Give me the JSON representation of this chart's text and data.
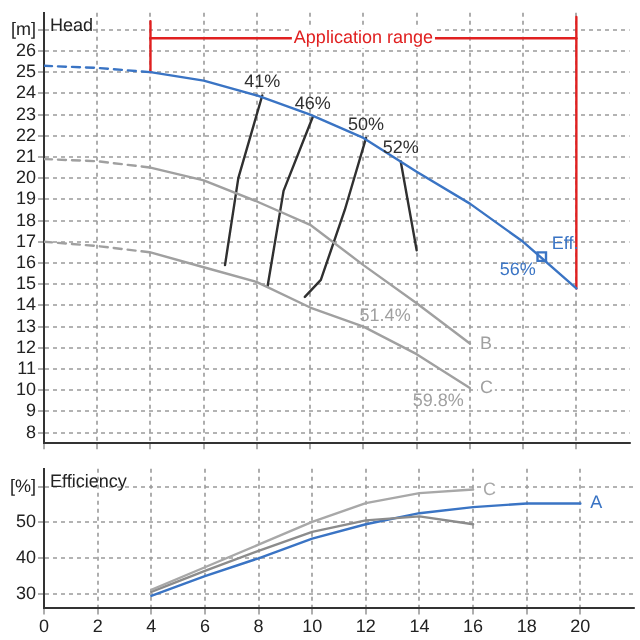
{
  "chart_data": [
    {
      "type": "line",
      "title": "Head",
      "xlim": [
        0,
        22
      ],
      "xticks": [
        0,
        2,
        4,
        6,
        8,
        10,
        12,
        14,
        16,
        18,
        20
      ],
      "ylim": [
        7.5,
        27.8
      ],
      "yticks": [
        8,
        9,
        10,
        11,
        12,
        13,
        14,
        15,
        16,
        17,
        18,
        19,
        20,
        21,
        22,
        23,
        24,
        25,
        26,
        {
          "value": 27,
          "label": "[m]"
        }
      ],
      "grid": true,
      "tick_labels": "y",
      "legend": false,
      "marker": "none",
      "annotations": [
        {
          "text": "Application range",
          "x": 12,
          "y": 26.6
        },
        {
          "text": "41%",
          "x": 8.2,
          "y": 23.9
        },
        {
          "text": "46%",
          "x": 10.1,
          "y": 22.9
        },
        {
          "text": "50%",
          "x": 12.1,
          "y": 21.9
        },
        {
          "text": "52%",
          "x": 13.4,
          "y": 20.8
        },
        {
          "text": "51.4%",
          "x": 14,
          "y": 14.1
        },
        {
          "text": "59.8%",
          "x": 16,
          "y": 10.1
        },
        {
          "text": "56%",
          "x": 18.7,
          "y": 16.3
        }
      ],
      "series": [
        {
          "color": "#3a74c4",
          "line_style": "dashed",
          "x": [
            0,
            2,
            4
          ],
          "values": [
            25.3,
            25.2,
            25.0
          ]
        },
        {
          "color": "#3a74c4",
          "x": [
            4,
            6,
            8,
            10,
            12,
            14,
            16,
            18,
            20
          ],
          "values": [
            25.0,
            24.6,
            23.9,
            23.0,
            21.9,
            20.3,
            18.8,
            17.0,
            14.8
          ]
        },
        {
          "color": "#a0a0a0",
          "line_style": "dashed",
          "x": [
            0,
            2,
            4
          ],
          "values": [
            20.9,
            20.8,
            20.5
          ]
        },
        {
          "name": "B",
          "color": "#a0a0a0",
          "x": [
            4,
            6,
            8,
            10,
            12,
            14,
            16
          ],
          "values": [
            20.5,
            19.9,
            18.9,
            17.8,
            15.9,
            14.1,
            12.2
          ]
        },
        {
          "color": "#a0a0a0",
          "line_style": "dashed",
          "x": [
            0,
            2,
            4
          ],
          "values": [
            17.0,
            16.8,
            16.5
          ]
        },
        {
          "name": "C",
          "color": "#a0a0a0",
          "x": [
            4,
            6,
            8,
            10,
            12,
            14,
            16
          ],
          "values": [
            16.5,
            15.8,
            15.1,
            13.9,
            13.0,
            11.7,
            10.1
          ]
        },
        {
          "color": "#303030",
          "x": [
            8.2,
            7.3,
            6.8
          ],
          "values": [
            23.9,
            20.0,
            15.9
          ]
        },
        {
          "color": "#303030",
          "x": [
            10.1,
            9.0,
            8.4
          ],
          "values": [
            22.9,
            19.4,
            14.9
          ]
        },
        {
          "color": "#303030",
          "x": [
            12.1,
            11.3,
            10.4,
            9.8
          ],
          "values": [
            21.9,
            18.5,
            15.2,
            14.4
          ]
        },
        {
          "color": "#303030",
          "x": [
            13.4,
            13.7,
            14.0
          ],
          "values": [
            20.8,
            18.7,
            16.6
          ]
        },
        {
          "color": "#e02020",
          "x": [
            4,
            4
          ],
          "values": [
            27.4,
            25.0
          ]
        },
        {
          "color": "#e02020",
          "x": [
            20,
            20
          ],
          "values": [
            27.6,
            14.8
          ]
        },
        {
          "color": "#e02020",
          "x": [
            4,
            20
          ],
          "values": [
            26.6,
            26.6
          ]
        },
        {
          "type": "scatter",
          "name": "Eff.",
          "color": "#3a74c4",
          "marker": "square",
          "x": [
            18.7
          ],
          "values": [
            16.3
          ]
        }
      ]
    },
    {
      "type": "line",
      "title": "Efficiency",
      "xlim": [
        0,
        22
      ],
      "xticks": [
        0,
        2,
        4,
        6,
        8,
        10,
        12,
        14,
        16,
        18,
        20
      ],
      "ylim": [
        26,
        65
      ],
      "yticks": [
        30,
        40,
        50,
        {
          "value": 60,
          "label": "[%]"
        }
      ],
      "grid": true,
      "legend": false,
      "marker": "none",
      "series": [
        {
          "name": "C",
          "color": "#a8a8a8",
          "x": [
            4,
            6,
            8,
            10,
            12,
            14,
            16
          ],
          "values": [
            31.2,
            37.5,
            43.8,
            50.2,
            55.4,
            58.2,
            59.2
          ]
        },
        {
          "color": "#8c8c8c",
          "x": [
            4,
            6,
            8,
            10,
            12,
            14,
            16
          ],
          "values": [
            30.6,
            36.5,
            42.1,
            47.4,
            50.6,
            51.7,
            49.5
          ]
        },
        {
          "name": "A",
          "color": "#3a74c4",
          "x": [
            4,
            6,
            8,
            10,
            12,
            14,
            16,
            18,
            20
          ],
          "values": [
            29.5,
            35,
            40,
            45.5,
            49.5,
            52.6,
            54.3,
            55.3,
            55.3
          ]
        }
      ]
    }
  ]
}
